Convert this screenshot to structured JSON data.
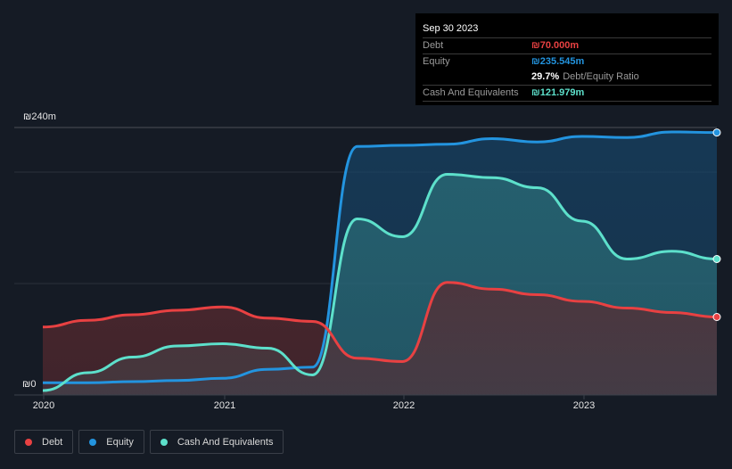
{
  "colors": {
    "debt": "#e84142",
    "equity": "#2394df",
    "cash": "#5de0cb",
    "background": "#151b25",
    "grid": "#2e3440"
  },
  "tooltip": {
    "date": "Sep 30 2023",
    "rows": [
      {
        "label": "Debt",
        "value": "₪70.000m",
        "color": "#e84142"
      },
      {
        "label": "Equity",
        "value": "₪235.545m",
        "color": "#2394df"
      },
      {
        "label": "",
        "ratio_value": "29.7%",
        "ratio_label": "Debt/Equity Ratio"
      },
      {
        "label": "Cash And Equivalents",
        "value": "₪121.979m",
        "color": "#5de0cb"
      }
    ]
  },
  "legend": [
    {
      "label": "Debt",
      "color": "#e84142"
    },
    {
      "label": "Equity",
      "color": "#2394df"
    },
    {
      "label": "Cash And Equivalents",
      "color": "#5de0cb"
    }
  ],
  "chart_data": {
    "type": "area",
    "title": "",
    "xlabel": "",
    "ylabel": "",
    "currency": "₪",
    "ylim": [
      0,
      240
    ],
    "y_ticks": [
      {
        "value": 0,
        "label": "₪0"
      },
      {
        "value": 240,
        "label": "₪240m"
      }
    ],
    "gridlines": [
      100,
      200,
      240
    ],
    "x_ticks": [
      "2020",
      "2021",
      "2022",
      "2023"
    ],
    "x": [
      "2019-12",
      "2020-03",
      "2020-06",
      "2020-09",
      "2020-12",
      "2021-03",
      "2021-06",
      "2021-09",
      "2021-12",
      "2022-03",
      "2022-06",
      "2022-09",
      "2022-12",
      "2023-03",
      "2023-06",
      "2023-09"
    ],
    "series": [
      {
        "name": "Debt",
        "color": "#e84142",
        "values": [
          61,
          67,
          72,
          76,
          79,
          69,
          66,
          33,
          30,
          101,
          95,
          90,
          84,
          78,
          74,
          70
        ]
      },
      {
        "name": "Equity",
        "color": "#2394df",
        "values": [
          11,
          11,
          12,
          13,
          15,
          23,
          25,
          223,
          224,
          225,
          230,
          227,
          232,
          231,
          236,
          235.5
        ]
      },
      {
        "name": "Cash And Equivalents",
        "color": "#5de0cb",
        "values": [
          4,
          20,
          34,
          44,
          46,
          42,
          18,
          158,
          142,
          198,
          195,
          186,
          156,
          122,
          129,
          122
        ]
      }
    ],
    "legend_position": "bottom-left",
    "grid": true
  }
}
